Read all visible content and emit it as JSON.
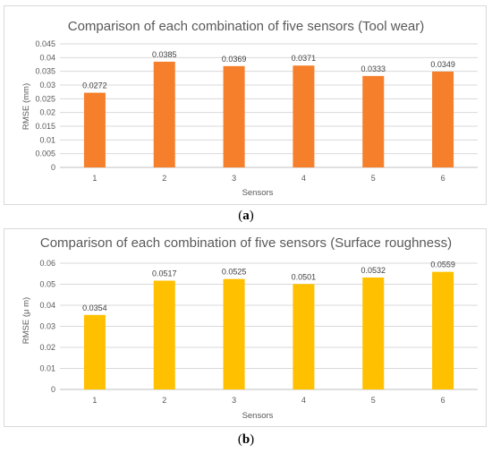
{
  "captions": {
    "a": {
      "open": "(",
      "letter": "a",
      "close": ")"
    },
    "b": {
      "open": "(",
      "letter": "b",
      "close": ")"
    }
  },
  "chart_data": [
    {
      "type": "bar",
      "title": "Comparison of each combination of five sensors (Tool wear)",
      "xlabel": "Sensors",
      "ylabel": "RMSE (mm)",
      "categories": [
        "1",
        "2",
        "3",
        "4",
        "5",
        "6"
      ],
      "values": [
        0.0272,
        0.0385,
        0.0369,
        0.0371,
        0.0333,
        0.0349
      ],
      "data_labels": [
        "0.0272",
        "0.0385",
        "0.0369",
        "0.0371",
        "0.0333",
        "0.0349"
      ],
      "ylim": [
        0,
        0.045
      ],
      "yticks": [
        "0",
        "0.005",
        "0.01",
        "0.015",
        "0.02",
        "0.025",
        "0.03",
        "0.035",
        "0.04",
        "0.045"
      ],
      "color": "#F57F2A",
      "grid": true
    },
    {
      "type": "bar",
      "title": "Comparison of each combination of five sensors (Surface roughness)",
      "xlabel": "Sensors",
      "ylabel": "RMSE (μ m)",
      "categories": [
        "1",
        "2",
        "3",
        "4",
        "5",
        "6"
      ],
      "values": [
        0.0354,
        0.0517,
        0.0525,
        0.0501,
        0.0532,
        0.0559
      ],
      "data_labels": [
        "0.0354",
        "0.0517",
        "0.0525",
        "0.0501",
        "0.0532",
        "0.0559"
      ],
      "ylim": [
        0,
        0.06
      ],
      "yticks": [
        "0",
        "0.01",
        "0.02",
        "0.03",
        "0.04",
        "0.05",
        "0.06"
      ],
      "color": "#FFC000",
      "grid": true
    }
  ]
}
